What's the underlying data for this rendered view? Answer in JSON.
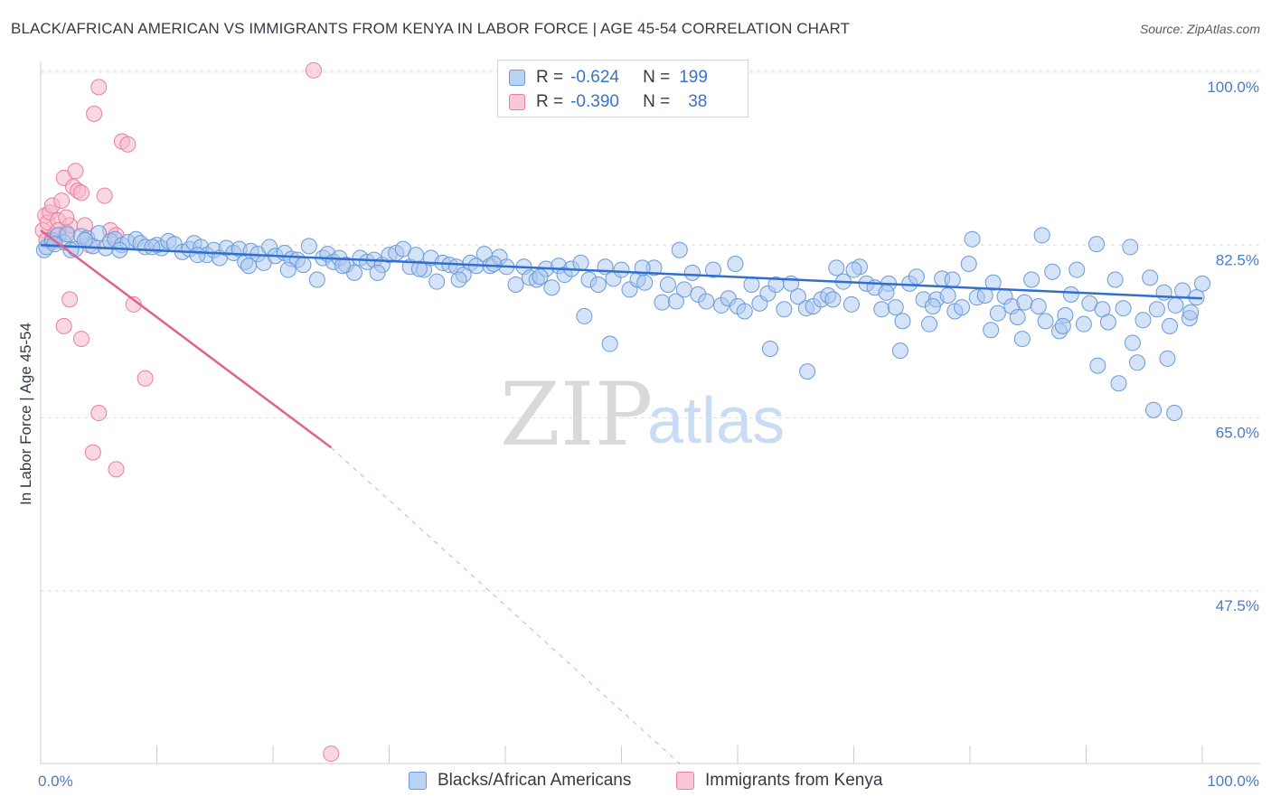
{
  "header": {
    "title": "BLACK/AFRICAN AMERICAN VS IMMIGRANTS FROM KENYA IN LABOR FORCE | AGE 45-54 CORRELATION CHART",
    "source": "Source: ZipAtlas.com"
  },
  "legend": {
    "rows": [
      {
        "r_label": "R =",
        "r_value": "-0.624",
        "n_label": "N =",
        "n_value": "199"
      },
      {
        "r_label": "R =",
        "r_value": "-0.390",
        "n_label": "N =",
        "n_value": "38"
      }
    ]
  },
  "bottom_legend": {
    "blue_label": "Blacks/African Americans",
    "pink_label": "Immigrants from Kenya"
  },
  "watermark": {
    "zip": "ZIP",
    "atlas": "atlas"
  },
  "colors": {
    "blue_fill": "#a9c8f0",
    "blue_stroke": "#6a9ad8",
    "blue_line": "#2f6fd0",
    "pink_fill": "#f6b8cb",
    "pink_stroke": "#e97fa0",
    "pink_line": "#e0628d",
    "tick_text": "#4a7bc7",
    "grid": "#dde1e6"
  },
  "chart_data": {
    "type": "scatter",
    "title": "BLACK/AFRICAN AMERICAN VS IMMIGRANTS FROM KENYA IN LABOR FORCE | AGE 45-54 CORRELATION CHART",
    "xlabel": "",
    "ylabel": "In Labor Force | Age 45-54",
    "xlim": [
      0,
      100
    ],
    "ylim": [
      30,
      100
    ],
    "x_tick_labels": [
      "0.0%",
      "100.0%"
    ],
    "y_ticks": [
      47.5,
      65.0,
      82.5,
      100.0
    ],
    "y_tick_labels": [
      "47.5%",
      "65.0%",
      "82.5%",
      "100.0%"
    ],
    "grid": true,
    "legend_position": "top-center",
    "series": [
      {
        "name": "Blacks/African Americans",
        "R": -0.624,
        "N": 199,
        "trend": {
          "x": [
            0,
            100
          ],
          "y": [
            82.5,
            77.1
          ]
        },
        "points": [
          [
            0.3,
            82.0
          ],
          [
            0.5,
            82.3
          ],
          [
            1.0,
            83.0
          ],
          [
            1.5,
            83.5
          ],
          [
            2.0,
            82.8
          ],
          [
            2.3,
            83.6
          ],
          [
            3.0,
            82.1
          ],
          [
            3.5,
            83.4
          ],
          [
            4.0,
            83.2
          ],
          [
            4.5,
            82.4
          ],
          [
            5.0,
            83.7
          ],
          [
            5.6,
            82.2
          ],
          [
            6.0,
            82.9
          ],
          [
            6.4,
            83.1
          ],
          [
            7.0,
            82.5
          ],
          [
            7.5,
            82.8
          ],
          [
            8.2,
            83.1
          ],
          [
            8.6,
            82.7
          ],
          [
            9.0,
            82.3
          ],
          [
            10.0,
            82.5
          ],
          [
            10.4,
            82.2
          ],
          [
            11.0,
            82.9
          ],
          [
            11.5,
            82.6
          ],
          [
            12.2,
            81.8
          ],
          [
            12.8,
            82.1
          ],
          [
            13.2,
            82.7
          ],
          [
            13.8,
            82.3
          ],
          [
            14.3,
            81.5
          ],
          [
            14.9,
            82.0
          ],
          [
            15.4,
            81.2
          ],
          [
            16.0,
            82.2
          ],
          [
            16.6,
            81.7
          ],
          [
            17.1,
            82.1
          ],
          [
            17.6,
            80.8
          ],
          [
            18.1,
            81.9
          ],
          [
            18.7,
            81.6
          ],
          [
            19.2,
            80.7
          ],
          [
            19.7,
            82.3
          ],
          [
            20.2,
            81.4
          ],
          [
            21.0,
            81.7
          ],
          [
            21.6,
            81.1
          ],
          [
            22.1,
            81.0
          ],
          [
            22.6,
            80.5
          ],
          [
            23.1,
            82.4
          ],
          [
            23.8,
            79.0
          ],
          [
            24.3,
            81.2
          ],
          [
            24.7,
            81.6
          ],
          [
            25.2,
            80.8
          ],
          [
            25.7,
            81.2
          ],
          [
            26.3,
            80.5
          ],
          [
            27.0,
            79.7
          ],
          [
            27.5,
            81.2
          ],
          [
            28.1,
            80.8
          ],
          [
            28.7,
            81.0
          ],
          [
            29.4,
            80.5
          ],
          [
            30.0,
            81.5
          ],
          [
            30.6,
            81.7
          ],
          [
            31.2,
            82.1
          ],
          [
            31.8,
            80.3
          ],
          [
            32.3,
            81.5
          ],
          [
            33.0,
            80.0
          ],
          [
            33.6,
            81.2
          ],
          [
            34.1,
            78.8
          ],
          [
            34.6,
            80.7
          ],
          [
            35.2,
            80.5
          ],
          [
            35.8,
            80.3
          ],
          [
            36.4,
            79.5
          ],
          [
            37.0,
            80.7
          ],
          [
            37.5,
            80.4
          ],
          [
            38.2,
            81.6
          ],
          [
            38.7,
            80.4
          ],
          [
            39.5,
            81.3
          ],
          [
            40.1,
            80.3
          ],
          [
            40.9,
            78.5
          ],
          [
            41.6,
            80.3
          ],
          [
            42.1,
            79.2
          ],
          [
            42.7,
            79.0
          ],
          [
            43.5,
            80.1
          ],
          [
            44.0,
            78.2
          ],
          [
            44.6,
            80.4
          ],
          [
            45.1,
            79.5
          ],
          [
            45.7,
            80.1
          ],
          [
            46.5,
            80.7
          ],
          [
            47.2,
            79.0
          ],
          [
            48.0,
            78.5
          ],
          [
            48.6,
            80.3
          ],
          [
            49.3,
            79.1
          ],
          [
            50.0,
            80.0
          ],
          [
            50.7,
            78.0
          ],
          [
            51.4,
            79.0
          ],
          [
            52.0,
            78.7
          ],
          [
            52.8,
            80.2
          ],
          [
            53.5,
            76.7
          ],
          [
            54.0,
            78.5
          ],
          [
            54.7,
            76.8
          ],
          [
            55.4,
            78.0
          ],
          [
            56.1,
            79.7
          ],
          [
            56.6,
            77.5
          ],
          [
            57.3,
            76.8
          ],
          [
            57.9,
            80.0
          ],
          [
            58.6,
            76.4
          ],
          [
            59.2,
            77.1
          ],
          [
            60.0,
            76.3
          ],
          [
            60.6,
            75.8
          ],
          [
            61.2,
            78.5
          ],
          [
            61.9,
            76.6
          ],
          [
            62.6,
            77.6
          ],
          [
            63.3,
            78.5
          ],
          [
            64.0,
            76.0
          ],
          [
            64.6,
            78.6
          ],
          [
            65.2,
            77.3
          ],
          [
            65.9,
            76.1
          ],
          [
            66.5,
            76.3
          ],
          [
            67.2,
            77.0
          ],
          [
            67.8,
            77.4
          ],
          [
            68.5,
            80.2
          ],
          [
            69.1,
            78.8
          ],
          [
            69.8,
            76.5
          ],
          [
            70.5,
            80.3
          ],
          [
            71.1,
            78.6
          ],
          [
            71.8,
            78.2
          ],
          [
            72.4,
            76.0
          ],
          [
            73.0,
            78.6
          ],
          [
            73.6,
            76.2
          ],
          [
            74.2,
            74.8
          ],
          [
            74.8,
            78.6
          ],
          [
            75.4,
            79.3
          ],
          [
            76.0,
            77.0
          ],
          [
            76.5,
            74.5
          ],
          [
            77.1,
            77.0
          ],
          [
            77.6,
            79.1
          ],
          [
            78.1,
            77.4
          ],
          [
            78.7,
            75.8
          ],
          [
            79.3,
            76.2
          ],
          [
            79.9,
            80.6
          ],
          [
            80.6,
            77.2
          ],
          [
            81.3,
            77.4
          ],
          [
            81.8,
            73.9
          ],
          [
            82.4,
            75.6
          ],
          [
            83.0,
            77.3
          ],
          [
            83.6,
            76.3
          ],
          [
            84.1,
            75.2
          ],
          [
            84.7,
            76.7
          ],
          [
            85.3,
            79.0
          ],
          [
            85.9,
            76.3
          ],
          [
            86.5,
            74.8
          ],
          [
            87.1,
            79.8
          ],
          [
            87.7,
            73.8
          ],
          [
            88.2,
            75.4
          ],
          [
            88.7,
            77.5
          ],
          [
            89.2,
            80.0
          ],
          [
            89.8,
            74.5
          ],
          [
            90.3,
            76.6
          ],
          [
            90.9,
            82.6
          ],
          [
            91.4,
            76.0
          ],
          [
            91.9,
            74.7
          ],
          [
            92.5,
            79.0
          ],
          [
            93.2,
            76.1
          ],
          [
            93.8,
            82.3
          ],
          [
            94.4,
            70.6
          ],
          [
            94.9,
            74.9
          ],
          [
            95.5,
            79.2
          ],
          [
            96.1,
            76.0
          ],
          [
            96.7,
            77.7
          ],
          [
            97.2,
            74.3
          ],
          [
            97.7,
            76.4
          ],
          [
            98.3,
            77.9
          ],
          [
            98.9,
            75.1
          ],
          [
            99.5,
            77.2
          ],
          [
            100.0,
            78.6
          ],
          [
            1.2,
            82.6
          ],
          [
            2.6,
            82.0
          ],
          [
            3.8,
            83.0
          ],
          [
            6.8,
            82.0
          ],
          [
            9.6,
            82.3
          ],
          [
            13.5,
            81.5
          ],
          [
            17.9,
            80.4
          ],
          [
            21.3,
            80.0
          ],
          [
            26.0,
            80.4
          ],
          [
            29.0,
            79.7
          ],
          [
            32.6,
            80.1
          ],
          [
            36.0,
            79.0
          ],
          [
            39.0,
            80.6
          ],
          [
            43.0,
            79.3
          ],
          [
            46.8,
            75.3
          ],
          [
            49.0,
            72.5
          ],
          [
            51.8,
            80.2
          ],
          [
            55.0,
            82.0
          ],
          [
            59.8,
            80.6
          ],
          [
            62.8,
            72.0
          ],
          [
            66.0,
            69.7
          ],
          [
            68.2,
            77.0
          ],
          [
            70.0,
            80.0
          ],
          [
            72.8,
            77.7
          ],
          [
            74.0,
            71.8
          ],
          [
            76.8,
            76.3
          ],
          [
            78.5,
            79.0
          ],
          [
            80.2,
            83.1
          ],
          [
            82.0,
            78.7
          ],
          [
            84.5,
            73.0
          ],
          [
            86.2,
            83.5
          ],
          [
            88.0,
            74.3
          ],
          [
            91.0,
            70.3
          ],
          [
            92.8,
            68.5
          ],
          [
            94.0,
            72.6
          ],
          [
            95.8,
            65.8
          ],
          [
            97.0,
            71.0
          ],
          [
            97.6,
            65.5
          ],
          [
            99.0,
            75.7
          ]
        ]
      },
      {
        "name": "Immigrants from Kenya",
        "R": -0.39,
        "N": 38,
        "trend": {
          "x": [
            0,
            25
          ],
          "y": [
            84.0,
            62.0
          ]
        },
        "trend_extension": {
          "x": [
            25,
            55
          ],
          "y": [
            62.0,
            30.0
          ]
        },
        "points": [
          [
            0.2,
            84.0
          ],
          [
            0.4,
            85.5
          ],
          [
            0.6,
            84.8
          ],
          [
            0.8,
            85.8
          ],
          [
            1.0,
            86.5
          ],
          [
            1.2,
            83.5
          ],
          [
            1.5,
            85.0
          ],
          [
            1.8,
            87.0
          ],
          [
            2.0,
            89.3
          ],
          [
            2.2,
            83.8
          ],
          [
            2.5,
            84.5
          ],
          [
            2.8,
            88.4
          ],
          [
            3.0,
            90.0
          ],
          [
            3.2,
            88.0
          ],
          [
            3.5,
            87.8
          ],
          [
            3.8,
            84.5
          ],
          [
            4.2,
            82.5
          ],
          [
            4.6,
            95.8
          ],
          [
            5.0,
            98.5
          ],
          [
            5.5,
            87.5
          ],
          [
            6.0,
            84.0
          ],
          [
            6.5,
            83.5
          ],
          [
            7.0,
            93.0
          ],
          [
            7.5,
            92.7
          ],
          [
            1.5,
            84.0
          ],
          [
            2.0,
            74.3
          ],
          [
            2.5,
            77.0
          ],
          [
            3.5,
            73.0
          ],
          [
            4.5,
            61.5
          ],
          [
            5.0,
            65.5
          ],
          [
            6.5,
            59.8
          ],
          [
            8.0,
            76.5
          ],
          [
            9.0,
            69.0
          ],
          [
            23.5,
            100.2
          ],
          [
            25.0,
            31.0
          ],
          [
            0.5,
            83.0
          ],
          [
            1.0,
            82.8
          ],
          [
            2.2,
            85.3
          ]
        ]
      }
    ]
  }
}
